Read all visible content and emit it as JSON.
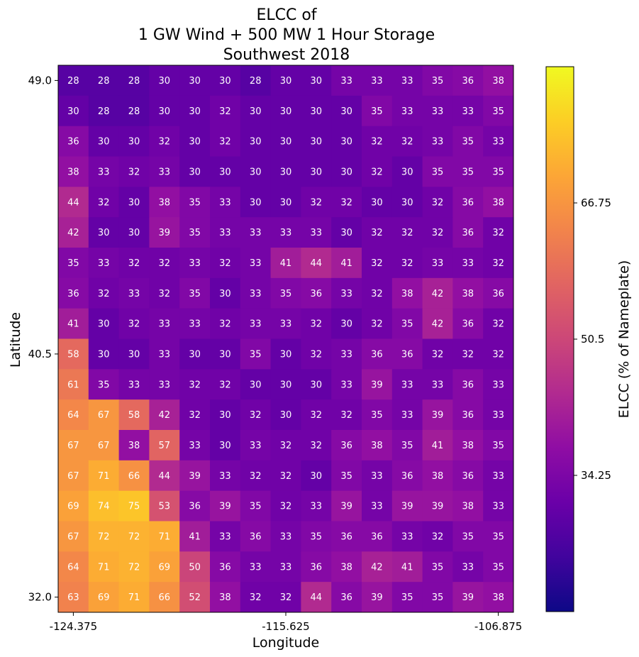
{
  "chart_data": {
    "type": "heatmap",
    "title": [
      "ELCC of",
      "1 GW Wind + 500 MW 1 Hour Storage",
      "Southwest 2018"
    ],
    "xlabel": "Longitude",
    "ylabel": "Latitude",
    "colorbar_label": "ELCC (% of Nameplate)",
    "colormap": "plasma",
    "color_range": [
      18,
      83
    ],
    "x_tick_labels": [
      "-124.375",
      "-115.625",
      "-106.875"
    ],
    "y_tick_labels": [
      "49.0",
      "40.5",
      "32.0"
    ],
    "colorbar_tick_labels": [
      "66.75",
      "50.5",
      "34.25"
    ],
    "colorbar_tick_values": [
      66.75,
      50.5,
      34.25
    ],
    "grid": false,
    "rows_top_to_bottom": [
      [
        28,
        28,
        28,
        30,
        30,
        30,
        28,
        30,
        30,
        33,
        33,
        33,
        35,
        36,
        38
      ],
      [
        30,
        28,
        28,
        30,
        30,
        32,
        30,
        30,
        30,
        30,
        35,
        33,
        33,
        33,
        35
      ],
      [
        36,
        30,
        30,
        32,
        30,
        32,
        30,
        30,
        30,
        30,
        32,
        32,
        33,
        35,
        33
      ],
      [
        38,
        33,
        32,
        33,
        30,
        30,
        30,
        30,
        30,
        30,
        32,
        30,
        35,
        35,
        35
      ],
      [
        44,
        32,
        30,
        38,
        35,
        33,
        30,
        30,
        32,
        32,
        30,
        30,
        32,
        36,
        38
      ],
      [
        42,
        30,
        30,
        39,
        35,
        33,
        33,
        33,
        33,
        30,
        32,
        32,
        32,
        36,
        32
      ],
      [
        35,
        33,
        32,
        32,
        33,
        32,
        33,
        41,
        44,
        41,
        32,
        32,
        33,
        33,
        32
      ],
      [
        36,
        32,
        33,
        32,
        35,
        30,
        33,
        35,
        36,
        33,
        32,
        38,
        42,
        38,
        36
      ],
      [
        41,
        30,
        32,
        33,
        33,
        32,
        33,
        33,
        32,
        30,
        32,
        35,
        42,
        36,
        32
      ],
      [
        58,
        30,
        30,
        33,
        30,
        30,
        35,
        30,
        32,
        33,
        36,
        36,
        32,
        32,
        32
      ],
      [
        61,
        35,
        33,
        33,
        32,
        32,
        30,
        30,
        30,
        33,
        39,
        33,
        33,
        36,
        33
      ],
      [
        64,
        67,
        58,
        42,
        32,
        30,
        32,
        30,
        32,
        32,
        35,
        33,
        39,
        36,
        33
      ],
      [
        67,
        67,
        38,
        57,
        33,
        30,
        33,
        32,
        32,
        36,
        38,
        35,
        41,
        38,
        35
      ],
      [
        67,
        71,
        66,
        44,
        39,
        33,
        32,
        32,
        30,
        35,
        33,
        36,
        38,
        36,
        33
      ],
      [
        69,
        74,
        75,
        53,
        36,
        39,
        35,
        32,
        33,
        39,
        33,
        39,
        39,
        38,
        33
      ],
      [
        67,
        72,
        72,
        71,
        41,
        33,
        36,
        33,
        35,
        36,
        36,
        33,
        32,
        35,
        35
      ],
      [
        64,
        71,
        72,
        69,
        50,
        36,
        33,
        33,
        36,
        38,
        42,
        41,
        35,
        33,
        35
      ],
      [
        63,
        69,
        71,
        66,
        52,
        38,
        32,
        32,
        44,
        36,
        39,
        35,
        35,
        39,
        38
      ]
    ]
  }
}
